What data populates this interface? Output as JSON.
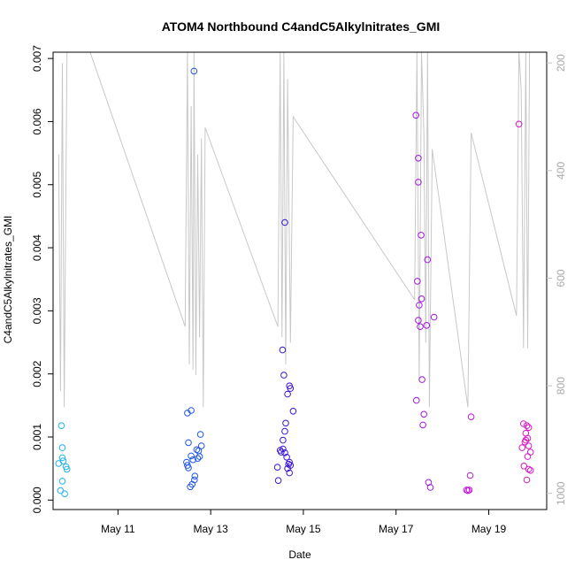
{
  "chart_data": {
    "type": "scatter",
    "title": "ATOM4 Northbound C4andC5Alkylnitrates_GMI",
    "xlabel": "Date",
    "ylabel": "C4andC5Alkylnitrates_GMI",
    "x_ticks": [
      {
        "day": 11,
        "label": "May 11"
      },
      {
        "day": 13,
        "label": "May 13"
      },
      {
        "day": 15,
        "label": "May 15"
      },
      {
        "day": 17,
        "label": "May 17"
      },
      {
        "day": 19,
        "label": "May 19"
      }
    ],
    "xlim": [
      9.6,
      20.25
    ],
    "y_ticks": [
      "0.000",
      "0.001",
      "0.002",
      "0.003",
      "0.004",
      "0.005",
      "0.006",
      "0.007"
    ],
    "ylim": [
      -0.00015,
      0.0071
    ],
    "y2_ticks": [
      "200",
      "400",
      "600",
      "800",
      "1000"
    ],
    "y2lim": [
      1030,
      180
    ],
    "y2_color": "#c0c0c0",
    "colors": {
      "flight1": "#1fb2ea",
      "flight2": "#1f55e6",
      "flight3": "#3a14d8",
      "flight4": "#a018e0",
      "flight5": "#c018d8",
      "flight6": "#d818c8",
      "pressure_line": "#c8c8c8"
    },
    "series": [
      {
        "color_key": "flight1",
        "points": [
          [
            9.72,
            0.00058
          ],
          [
            9.78,
            0.00118
          ],
          [
            9.8,
            0.00083
          ],
          [
            9.8,
            0.00067
          ],
          [
            9.82,
            0.00062
          ],
          [
            9.76,
            0.00015
          ],
          [
            9.8,
            0.0003
          ],
          [
            9.85,
            0.0001
          ],
          [
            9.88,
            0.00053
          ],
          [
            9.9,
            0.00049
          ]
        ]
      },
      {
        "color_key": "flight2",
        "points": [
          [
            12.5,
            0.00138
          ],
          [
            12.58,
            0.00142
          ],
          [
            12.52,
            0.00091
          ],
          [
            12.48,
            0.0006
          ],
          [
            12.5,
            0.00055
          ],
          [
            12.52,
            0.00051
          ],
          [
            12.58,
            0.0007
          ],
          [
            12.62,
            0.00064
          ],
          [
            12.66,
            0.00038
          ],
          [
            12.65,
            0.00032
          ],
          [
            12.6,
            0.00025
          ],
          [
            12.56,
            0.00021
          ],
          [
            12.7,
            0.0008
          ],
          [
            12.74,
            0.00078
          ],
          [
            12.78,
            0.00104
          ],
          [
            12.8,
            0.00086
          ],
          [
            12.72,
            0.00066
          ],
          [
            12.76,
            0.00069
          ],
          [
            12.64,
            0.0068
          ]
        ]
      },
      {
        "color_key": "flight3",
        "points": [
          [
            14.6,
            0.0044
          ],
          [
            14.55,
            0.00238
          ],
          [
            14.58,
            0.00198
          ],
          [
            14.7,
            0.00181
          ],
          [
            14.72,
            0.00177
          ],
          [
            14.66,
            0.00168
          ],
          [
            14.78,
            0.00141
          ],
          [
            14.62,
            0.00122
          ],
          [
            14.6,
            0.00109
          ],
          [
            14.56,
            0.00095
          ],
          [
            14.5,
            0.00079
          ],
          [
            14.52,
            0.00076
          ],
          [
            14.56,
            0.00081
          ],
          [
            14.6,
            0.00075
          ],
          [
            14.64,
            0.00068
          ],
          [
            14.68,
            0.00057
          ],
          [
            14.72,
            0.00055
          ],
          [
            14.7,
            0.0006
          ],
          [
            14.66,
            0.0005
          ],
          [
            14.44,
            0.00052
          ],
          [
            14.46,
            0.00031
          ],
          [
            14.7,
            0.00043
          ]
        ]
      },
      {
        "color_key": "flight4",
        "points": [
          [
            17.43,
            0.0061
          ],
          [
            17.48,
            0.00542
          ],
          [
            17.48,
            0.00504
          ],
          [
            17.54,
            0.0042
          ],
          [
            17.68,
            0.00381
          ],
          [
            17.46,
            0.00347
          ],
          [
            17.55,
            0.00319
          ],
          [
            17.5,
            0.00309
          ],
          [
            17.82,
            0.0029
          ],
          [
            17.48,
            0.00285
          ],
          [
            17.52,
            0.00275
          ],
          [
            17.66,
            0.00277
          ],
          [
            17.56,
            0.00191
          ],
          [
            17.44,
            0.00158
          ],
          [
            17.6,
            0.00136
          ],
          [
            17.58,
            0.00119
          ],
          [
            17.7,
            0.00028
          ],
          [
            17.74,
            0.0002
          ]
        ]
      },
      {
        "color_key": "flight5",
        "points": [
          [
            18.62,
            0.00132
          ],
          [
            18.6,
            0.00039
          ],
          [
            18.52,
            0.00016
          ],
          [
            18.58,
            0.00016
          ],
          [
            18.55,
            0.00015
          ]
        ]
      },
      {
        "color_key": "flight6",
        "points": [
          [
            19.65,
            0.00596
          ],
          [
            19.75,
            0.00121
          ],
          [
            19.82,
            0.00118
          ],
          [
            19.86,
            0.00115
          ],
          [
            19.8,
            0.00106
          ],
          [
            19.84,
            0.00098
          ],
          [
            19.8,
            0.00095
          ],
          [
            19.78,
            0.00092
          ],
          [
            19.86,
            0.00086
          ],
          [
            19.72,
            0.00083
          ],
          [
            19.9,
            0.00076
          ],
          [
            19.84,
            0.00069
          ],
          [
            19.76,
            0.00054
          ],
          [
            19.86,
            0.00049
          ],
          [
            19.9,
            0.00047
          ],
          [
            19.82,
            0.00032
          ]
        ]
      }
    ],
    "pressure_line": [
      [
        9.72,
        370
      ],
      [
        9.76,
        810
      ],
      [
        9.8,
        200
      ],
      [
        9.84,
        840
      ],
      [
        9.9,
        180
      ],
      [
        10.4,
        180
      ],
      [
        12.45,
        690
      ],
      [
        12.5,
        180
      ],
      [
        12.54,
        760
      ],
      [
        12.58,
        280
      ],
      [
        12.62,
        770
      ],
      [
        12.64,
        180
      ],
      [
        12.68,
        780
      ],
      [
        12.72,
        370
      ],
      [
        12.76,
        710
      ],
      [
        12.8,
        340
      ],
      [
        12.84,
        840
      ],
      [
        12.88,
        320
      ],
      [
        14.45,
        690
      ],
      [
        14.5,
        180
      ],
      [
        14.54,
        710
      ],
      [
        14.58,
        180
      ],
      [
        14.62,
        760
      ],
      [
        14.66,
        230
      ],
      [
        14.72,
        720
      ],
      [
        14.78,
        300
      ],
      [
        17.4,
        640
      ],
      [
        17.45,
        180
      ],
      [
        17.5,
        790
      ],
      [
        17.55,
        180
      ],
      [
        17.6,
        330
      ],
      [
        17.64,
        720
      ],
      [
        17.68,
        180
      ],
      [
        17.72,
        840
      ],
      [
        17.78,
        360
      ],
      [
        18.55,
        840
      ],
      [
        18.62,
        330
      ],
      [
        19.6,
        670
      ],
      [
        19.65,
        180
      ],
      [
        19.7,
        250
      ],
      [
        19.75,
        730
      ],
      [
        19.8,
        180
      ],
      [
        19.84,
        730
      ],
      [
        19.88,
        180
      ]
    ]
  }
}
